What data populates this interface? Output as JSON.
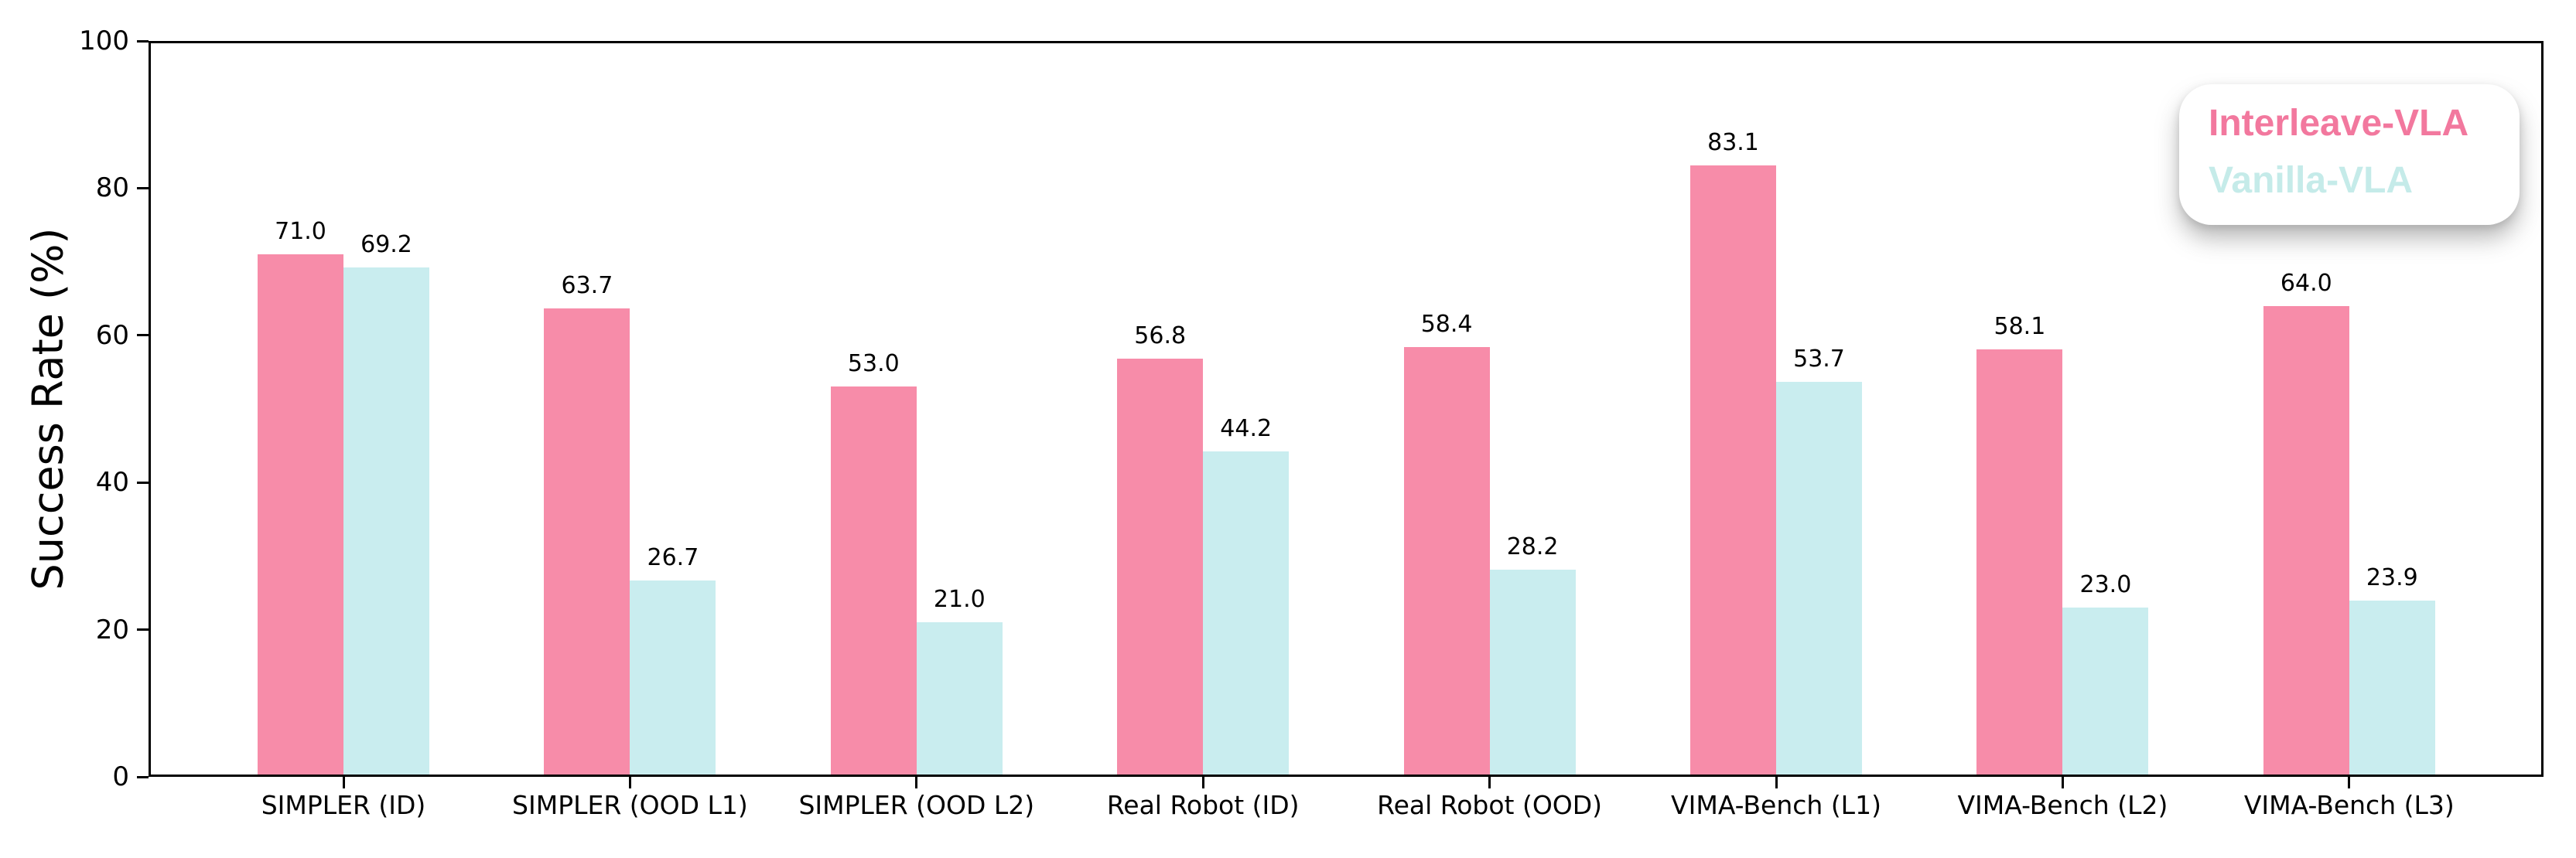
{
  "chart_data": {
    "type": "bar",
    "title": "",
    "xlabel": "",
    "ylabel": "Success Rate (%)",
    "ylim": [
      0,
      100
    ],
    "yticks": [
      0,
      20,
      40,
      60,
      80,
      100
    ],
    "grid": false,
    "bar_value_labels": true,
    "legend_position": "upper right",
    "categories": [
      "SIMPLER (ID)",
      "SIMPLER (OOD L1)",
      "SIMPLER (OOD L2)",
      "Real Robot (ID)",
      "Real Robot (OOD)",
      "VIMA-Bench (L1)",
      "VIMA-Bench (L2)",
      "VIMA-Bench (L3)"
    ],
    "series": [
      {
        "name": "Interleave-VLA",
        "color": "#F78CA9",
        "legend_text_color": "#F2789E",
        "values": [
          71.0,
          63.7,
          53.0,
          56.8,
          58.4,
          83.1,
          58.1,
          64.0
        ]
      },
      {
        "name": "Vanilla-VLA",
        "color": "#C9EDEF",
        "legend_text_color": "#C5EBE9",
        "values": [
          69.2,
          26.7,
          21.0,
          44.2,
          28.2,
          53.7,
          23.0,
          23.9
        ]
      }
    ],
    "colors": {
      "axis": "#000000",
      "background": "#ffffff",
      "legend_background": "#ffffff"
    }
  }
}
